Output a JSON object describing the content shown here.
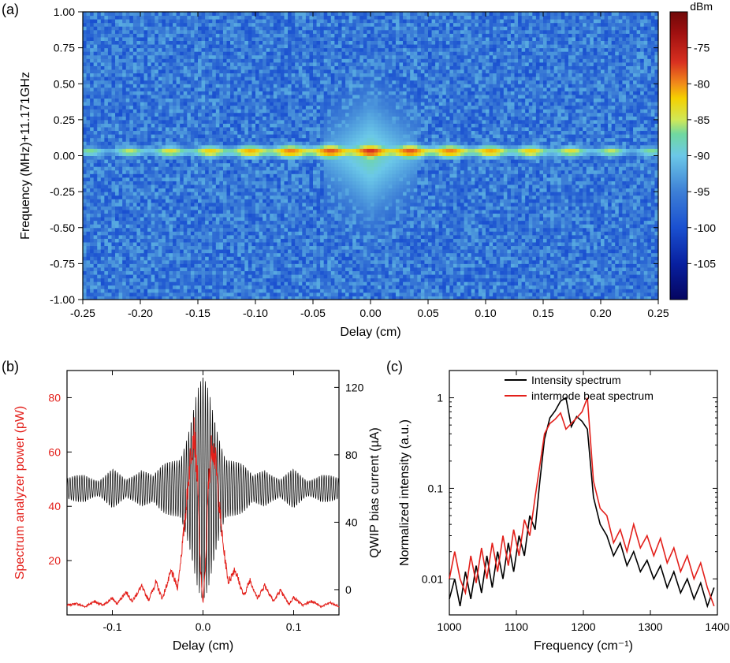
{
  "labels": {
    "panel_a": "(a)",
    "panel_b": "(b)",
    "panel_c": "(c)"
  },
  "panel_a": {
    "type": "heatmap",
    "xlabel": "Delay (cm)",
    "ylabel": "Frequency (MHz)+11.171GHz",
    "colorbar_label": "dBm",
    "xlim": [
      -0.25,
      0.25
    ],
    "ylim": [
      -1.0,
      1.0
    ],
    "xticks": [
      -0.25,
      -0.2,
      -0.15,
      -0.1,
      -0.05,
      0.0,
      0.05,
      0.1,
      0.15,
      0.2,
      0.25
    ],
    "yticks": [
      -1.0,
      -0.75,
      -0.5,
      -0.25,
      0.0,
      0.25,
      0.5,
      0.75,
      1.0
    ],
    "clim": [
      -110,
      -70
    ],
    "cticks": [
      -75,
      -80,
      -85,
      -90,
      -95,
      -100,
      -105
    ],
    "background_color": "#3d7fd6",
    "noise_color": "#2a6fd0",
    "line_color_hot": "#c81418",
    "line_color_mid": "#f5d000",
    "line_color_cool": "#6bc8e8",
    "line_y": 0.03,
    "label_fontsize": 16,
    "tick_fontsize": 14,
    "colormap_stops": [
      {
        "v": -110,
        "c": "#050560"
      },
      {
        "v": -105,
        "c": "#0820a0"
      },
      {
        "v": -100,
        "c": "#1a50d0"
      },
      {
        "v": -95,
        "c": "#3d7fd6"
      },
      {
        "v": -90,
        "c": "#6bc8e8"
      },
      {
        "v": -87,
        "c": "#70d8a0"
      },
      {
        "v": -85,
        "c": "#d0e858"
      },
      {
        "v": -82,
        "c": "#f5d000"
      },
      {
        "v": -80,
        "c": "#f28c1a"
      },
      {
        "v": -77,
        "c": "#d83020"
      },
      {
        "v": -73,
        "c": "#a01010"
      },
      {
        "v": -70,
        "c": "#700808"
      }
    ]
  },
  "panel_b": {
    "type": "line",
    "xlabel": "Delay (cm)",
    "ylabel_left": "Spectrum analyzer power (pW)",
    "ylabel_right": "QWIP bias current (µA)",
    "xlim": [
      -0.15,
      0.15
    ],
    "ylim_left": [
      0,
      90
    ],
    "ylim_right": [
      -15,
      130
    ],
    "xticks": [
      -0.1,
      0.0,
      0.1
    ],
    "yticks_left": [
      20,
      40,
      60,
      80
    ],
    "yticks_right": [
      0,
      40,
      80,
      120
    ],
    "color_left": "#e3201b",
    "color_right": "#000000",
    "label_fontsize": 16,
    "tick_fontsize": 14,
    "line_width": 1.2,
    "red_series": [
      {
        "x": -0.15,
        "y": 3.5
      },
      {
        "x": -0.14,
        "y": 4.2
      },
      {
        "x": -0.13,
        "y": 3.0
      },
      {
        "x": -0.12,
        "y": 5.0
      },
      {
        "x": -0.11,
        "y": 3.5
      },
      {
        "x": -0.1,
        "y": 6.2
      },
      {
        "x": -0.095,
        "y": 4.0
      },
      {
        "x": -0.085,
        "y": 8.5
      },
      {
        "x": -0.078,
        "y": 5.0
      },
      {
        "x": -0.068,
        "y": 10.5
      },
      {
        "x": -0.06,
        "y": 5.5
      },
      {
        "x": -0.052,
        "y": 12.0
      },
      {
        "x": -0.045,
        "y": 6.0
      },
      {
        "x": -0.035,
        "y": 16.0
      },
      {
        "x": -0.028,
        "y": 10.0
      },
      {
        "x": -0.022,
        "y": 28.0
      },
      {
        "x": -0.018,
        "y": 42.0
      },
      {
        "x": -0.014,
        "y": 58.0
      },
      {
        "x": -0.01,
        "y": 68.0
      },
      {
        "x": -0.006,
        "y": 50.0
      },
      {
        "x": -0.003,
        "y": 18.0
      },
      {
        "x": 0.0,
        "y": 4.0
      },
      {
        "x": 0.003,
        "y": 20.0
      },
      {
        "x": 0.006,
        "y": 48.0
      },
      {
        "x": 0.01,
        "y": 64.0
      },
      {
        "x": 0.014,
        "y": 56.0
      },
      {
        "x": 0.018,
        "y": 40.0
      },
      {
        "x": 0.022,
        "y": 26.0
      },
      {
        "x": 0.028,
        "y": 12.0
      },
      {
        "x": 0.035,
        "y": 17.0
      },
      {
        "x": 0.045,
        "y": 7.0
      },
      {
        "x": 0.052,
        "y": 13.0
      },
      {
        "x": 0.06,
        "y": 6.0
      },
      {
        "x": 0.068,
        "y": 11.0
      },
      {
        "x": 0.078,
        "y": 5.0
      },
      {
        "x": 0.085,
        "y": 9.0
      },
      {
        "x": 0.095,
        "y": 4.0
      },
      {
        "x": 0.1,
        "y": 6.5
      },
      {
        "x": 0.11,
        "y": 3.5
      },
      {
        "x": 0.12,
        "y": 5.2
      },
      {
        "x": 0.13,
        "y": 3.0
      },
      {
        "x": 0.14,
        "y": 4.5
      },
      {
        "x": 0.15,
        "y": 3.0
      }
    ],
    "black_baseline": 60,
    "black_envelope": [
      {
        "x": -0.15,
        "amp": 6
      },
      {
        "x": -0.13,
        "amp": 10
      },
      {
        "x": -0.115,
        "amp": 6
      },
      {
        "x": -0.1,
        "amp": 12
      },
      {
        "x": -0.085,
        "amp": 6
      },
      {
        "x": -0.068,
        "amp": 15
      },
      {
        "x": -0.055,
        "amp": 8
      },
      {
        "x": -0.038,
        "amp": 18
      },
      {
        "x": -0.025,
        "amp": 25
      },
      {
        "x": -0.015,
        "amp": 45
      },
      {
        "x": -0.007,
        "amp": 60
      },
      {
        "x": 0.0,
        "amp": 68
      },
      {
        "x": 0.007,
        "amp": 60
      },
      {
        "x": 0.015,
        "amp": 45
      },
      {
        "x": 0.025,
        "amp": 25
      },
      {
        "x": 0.038,
        "amp": 18
      },
      {
        "x": 0.055,
        "amp": 8
      },
      {
        "x": 0.068,
        "amp": 15
      },
      {
        "x": 0.085,
        "amp": 6
      },
      {
        "x": 0.1,
        "amp": 12
      },
      {
        "x": 0.115,
        "amp": 6
      },
      {
        "x": 0.13,
        "amp": 10
      },
      {
        "x": 0.15,
        "amp": 6
      }
    ]
  },
  "panel_c": {
    "type": "line",
    "xlabel": "Frequency (cm⁻¹)",
    "ylabel": "Normalized intensity (a.u.)",
    "xlim": [
      1000,
      1400
    ],
    "yscale": "log",
    "ylim": [
      0.004,
      2.0
    ],
    "xticks": [
      1000,
      1100,
      1200,
      1300,
      1400
    ],
    "yticks": [
      0.01,
      0.1,
      1
    ],
    "yticks_text": [
      "0.01",
      "0.1",
      "1"
    ],
    "legend": [
      "Intensity spectrum",
      "intermode beat spectrum"
    ],
    "colors": [
      "#000000",
      "#e3201b"
    ],
    "label_fontsize": 16,
    "tick_fontsize": 14,
    "line_width": 1.6,
    "black_series": [
      {
        "x": 1000,
        "y": 0.006
      },
      {
        "x": 1008,
        "y": 0.01
      },
      {
        "x": 1016,
        "y": 0.005
      },
      {
        "x": 1024,
        "y": 0.012
      },
      {
        "x": 1032,
        "y": 0.006
      },
      {
        "x": 1040,
        "y": 0.014
      },
      {
        "x": 1048,
        "y": 0.007
      },
      {
        "x": 1056,
        "y": 0.018
      },
      {
        "x": 1064,
        "y": 0.008
      },
      {
        "x": 1072,
        "y": 0.02
      },
      {
        "x": 1080,
        "y": 0.01
      },
      {
        "x": 1088,
        "y": 0.025
      },
      {
        "x": 1096,
        "y": 0.012
      },
      {
        "x": 1104,
        "y": 0.03
      },
      {
        "x": 1112,
        "y": 0.018
      },
      {
        "x": 1120,
        "y": 0.05
      },
      {
        "x": 1128,
        "y": 0.035
      },
      {
        "x": 1135,
        "y": 0.12
      },
      {
        "x": 1142,
        "y": 0.35
      },
      {
        "x": 1150,
        "y": 0.6
      },
      {
        "x": 1158,
        "y": 0.72
      },
      {
        "x": 1166,
        "y": 0.92
      },
      {
        "x": 1174,
        "y": 1.0
      },
      {
        "x": 1182,
        "y": 0.48
      },
      {
        "x": 1190,
        "y": 0.62
      },
      {
        "x": 1198,
        "y": 0.55
      },
      {
        "x": 1206,
        "y": 0.45
      },
      {
        "x": 1215,
        "y": 0.08
      },
      {
        "x": 1225,
        "y": 0.04
      },
      {
        "x": 1235,
        "y": 0.03
      },
      {
        "x": 1245,
        "y": 0.018
      },
      {
        "x": 1255,
        "y": 0.025
      },
      {
        "x": 1265,
        "y": 0.014
      },
      {
        "x": 1275,
        "y": 0.02
      },
      {
        "x": 1285,
        "y": 0.012
      },
      {
        "x": 1295,
        "y": 0.016
      },
      {
        "x": 1305,
        "y": 0.01
      },
      {
        "x": 1315,
        "y": 0.014
      },
      {
        "x": 1325,
        "y": 0.008
      },
      {
        "x": 1335,
        "y": 0.012
      },
      {
        "x": 1345,
        "y": 0.007
      },
      {
        "x": 1355,
        "y": 0.01
      },
      {
        "x": 1365,
        "y": 0.006
      },
      {
        "x": 1375,
        "y": 0.009
      },
      {
        "x": 1385,
        "y": 0.005
      },
      {
        "x": 1395,
        "y": 0.008
      }
    ],
    "red_series": [
      {
        "x": 1000,
        "y": 0.01
      },
      {
        "x": 1008,
        "y": 0.02
      },
      {
        "x": 1016,
        "y": 0.01
      },
      {
        "x": 1024,
        "y": 0.007
      },
      {
        "x": 1032,
        "y": 0.018
      },
      {
        "x": 1040,
        "y": 0.009
      },
      {
        "x": 1048,
        "y": 0.022
      },
      {
        "x": 1056,
        "y": 0.01
      },
      {
        "x": 1064,
        "y": 0.025
      },
      {
        "x": 1072,
        "y": 0.012
      },
      {
        "x": 1080,
        "y": 0.03
      },
      {
        "x": 1088,
        "y": 0.014
      },
      {
        "x": 1096,
        "y": 0.035
      },
      {
        "x": 1104,
        "y": 0.018
      },
      {
        "x": 1112,
        "y": 0.045
      },
      {
        "x": 1120,
        "y": 0.03
      },
      {
        "x": 1128,
        "y": 0.08
      },
      {
        "x": 1135,
        "y": 0.18
      },
      {
        "x": 1142,
        "y": 0.4
      },
      {
        "x": 1150,
        "y": 0.52
      },
      {
        "x": 1158,
        "y": 0.58
      },
      {
        "x": 1166,
        "y": 0.68
      },
      {
        "x": 1174,
        "y": 0.45
      },
      {
        "x": 1182,
        "y": 0.52
      },
      {
        "x": 1190,
        "y": 0.6
      },
      {
        "x": 1198,
        "y": 0.7
      },
      {
        "x": 1206,
        "y": 1.0
      },
      {
        "x": 1215,
        "y": 0.12
      },
      {
        "x": 1225,
        "y": 0.06
      },
      {
        "x": 1235,
        "y": 0.05
      },
      {
        "x": 1245,
        "y": 0.025
      },
      {
        "x": 1255,
        "y": 0.035
      },
      {
        "x": 1265,
        "y": 0.02
      },
      {
        "x": 1275,
        "y": 0.04
      },
      {
        "x": 1285,
        "y": 0.022
      },
      {
        "x": 1295,
        "y": 0.03
      },
      {
        "x": 1305,
        "y": 0.018
      },
      {
        "x": 1315,
        "y": 0.028
      },
      {
        "x": 1325,
        "y": 0.015
      },
      {
        "x": 1335,
        "y": 0.022
      },
      {
        "x": 1345,
        "y": 0.012
      },
      {
        "x": 1355,
        "y": 0.018
      },
      {
        "x": 1365,
        "y": 0.01
      },
      {
        "x": 1375,
        "y": 0.015
      },
      {
        "x": 1385,
        "y": 0.008
      },
      {
        "x": 1395,
        "y": 0.005
      }
    ]
  }
}
